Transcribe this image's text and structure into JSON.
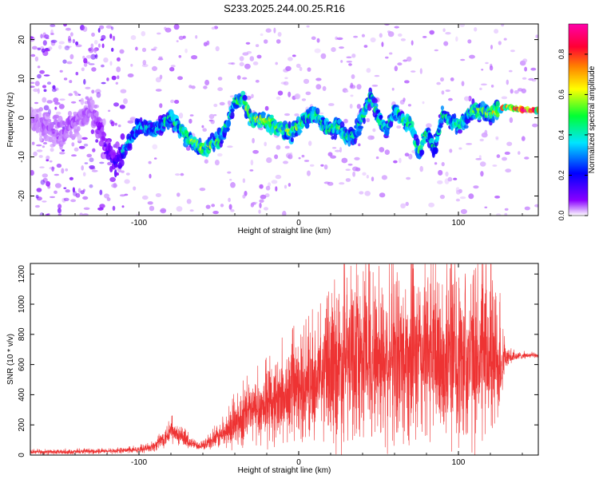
{
  "title": "S233.2025.244.00.25.R16",
  "chart_data": [
    {
      "type": "heatmap",
      "xlabel": "Height of straight line (km)",
      "ylabel": "Frequency (Hz)",
      "xlim": [
        -168,
        150
      ],
      "ylim": [
        -25,
        24
      ],
      "xticks": [
        -100,
        0,
        100
      ],
      "yticks": [
        -20,
        -10,
        0,
        10,
        20
      ],
      "colorbar": {
        "label": "Normalized spectral amplitude",
        "range": [
          0.0,
          0.95
        ],
        "ticks": [
          0.0,
          0.2,
          0.4,
          0.6,
          0.8
        ],
        "colormap": [
          "#ffffff",
          "#8a00ff",
          "#0000ff",
          "#00e5ff",
          "#00ff33",
          "#ffff00",
          "#ff7f00",
          "#ff0033",
          "#ff00aa"
        ]
      },
      "ridge": {
        "x": [
          -168,
          -150,
          -130,
          -115,
          -100,
          -90,
          -80,
          -70,
          -60,
          -50,
          -45,
          -40,
          -35,
          -30,
          -20,
          -10,
          -5,
          0,
          5,
          10,
          15,
          20,
          25,
          30,
          35,
          40,
          45,
          50,
          55,
          60,
          65,
          70,
          75,
          80,
          85,
          90,
          100,
          110,
          120,
          130,
          140,
          150
        ],
        "y": [
          0,
          -4,
          2,
          -12,
          -2,
          -3,
          0,
          -5,
          -8,
          -6,
          -2,
          4,
          5,
          0,
          -1,
          -3,
          -4,
          -2,
          0,
          1,
          -2,
          -3,
          -2,
          -5,
          -4,
          0,
          6,
          0,
          -3,
          2,
          -1,
          -1,
          -9,
          -4,
          -8,
          1,
          -2,
          2,
          1,
          3,
          2,
          2
        ],
        "amplitude": [
          0.1,
          0.15,
          0.12,
          0.3,
          0.35,
          0.35,
          0.4,
          0.45,
          0.5,
          0.45,
          0.4,
          0.4,
          0.45,
          0.5,
          0.55,
          0.45,
          0.5,
          0.45,
          0.4,
          0.45,
          0.4,
          0.4,
          0.45,
          0.45,
          0.4,
          0.4,
          0.4,
          0.4,
          0.4,
          0.4,
          0.45,
          0.5,
          0.4,
          0.45,
          0.35,
          0.4,
          0.4,
          0.45,
          0.5,
          0.7,
          0.85,
          0.9
        ]
      }
    },
    {
      "type": "line",
      "xlabel": "Height of straight line (km)",
      "ylabel": "SNR (10 * v/v)",
      "xlim": [
        -168,
        150
      ],
      "ylim": [
        0,
        1270
      ],
      "xticks": [
        -100,
        0,
        100
      ],
      "yticks": [
        0,
        200,
        400,
        600,
        800,
        1000,
        1200
      ],
      "color": "#ee3333",
      "envelope": {
        "x": [
          -168,
          -150,
          -120,
          -100,
          -90,
          -85,
          -80,
          -75,
          -70,
          -65,
          -60,
          -50,
          -40,
          -30,
          -20,
          -10,
          0,
          10,
          20,
          25,
          30,
          40,
          50,
          60,
          70,
          80,
          90,
          100,
          110,
          120,
          125,
          130,
          140,
          150
        ],
        "mean": [
          20,
          20,
          25,
          35,
          60,
          110,
          160,
          120,
          90,
          70,
          60,
          120,
          200,
          280,
          330,
          380,
          420,
          480,
          560,
          600,
          620,
          640,
          650,
          640,
          650,
          660,
          630,
          620,
          640,
          650,
          620,
          640,
          660,
          660
        ],
        "spread": [
          15,
          15,
          15,
          20,
          35,
          60,
          90,
          60,
          50,
          30,
          25,
          80,
          150,
          220,
          250,
          300,
          320,
          350,
          480,
          550,
          560,
          520,
          550,
          560,
          580,
          600,
          560,
          560,
          580,
          560,
          450,
          50,
          20,
          15
        ]
      }
    }
  ]
}
